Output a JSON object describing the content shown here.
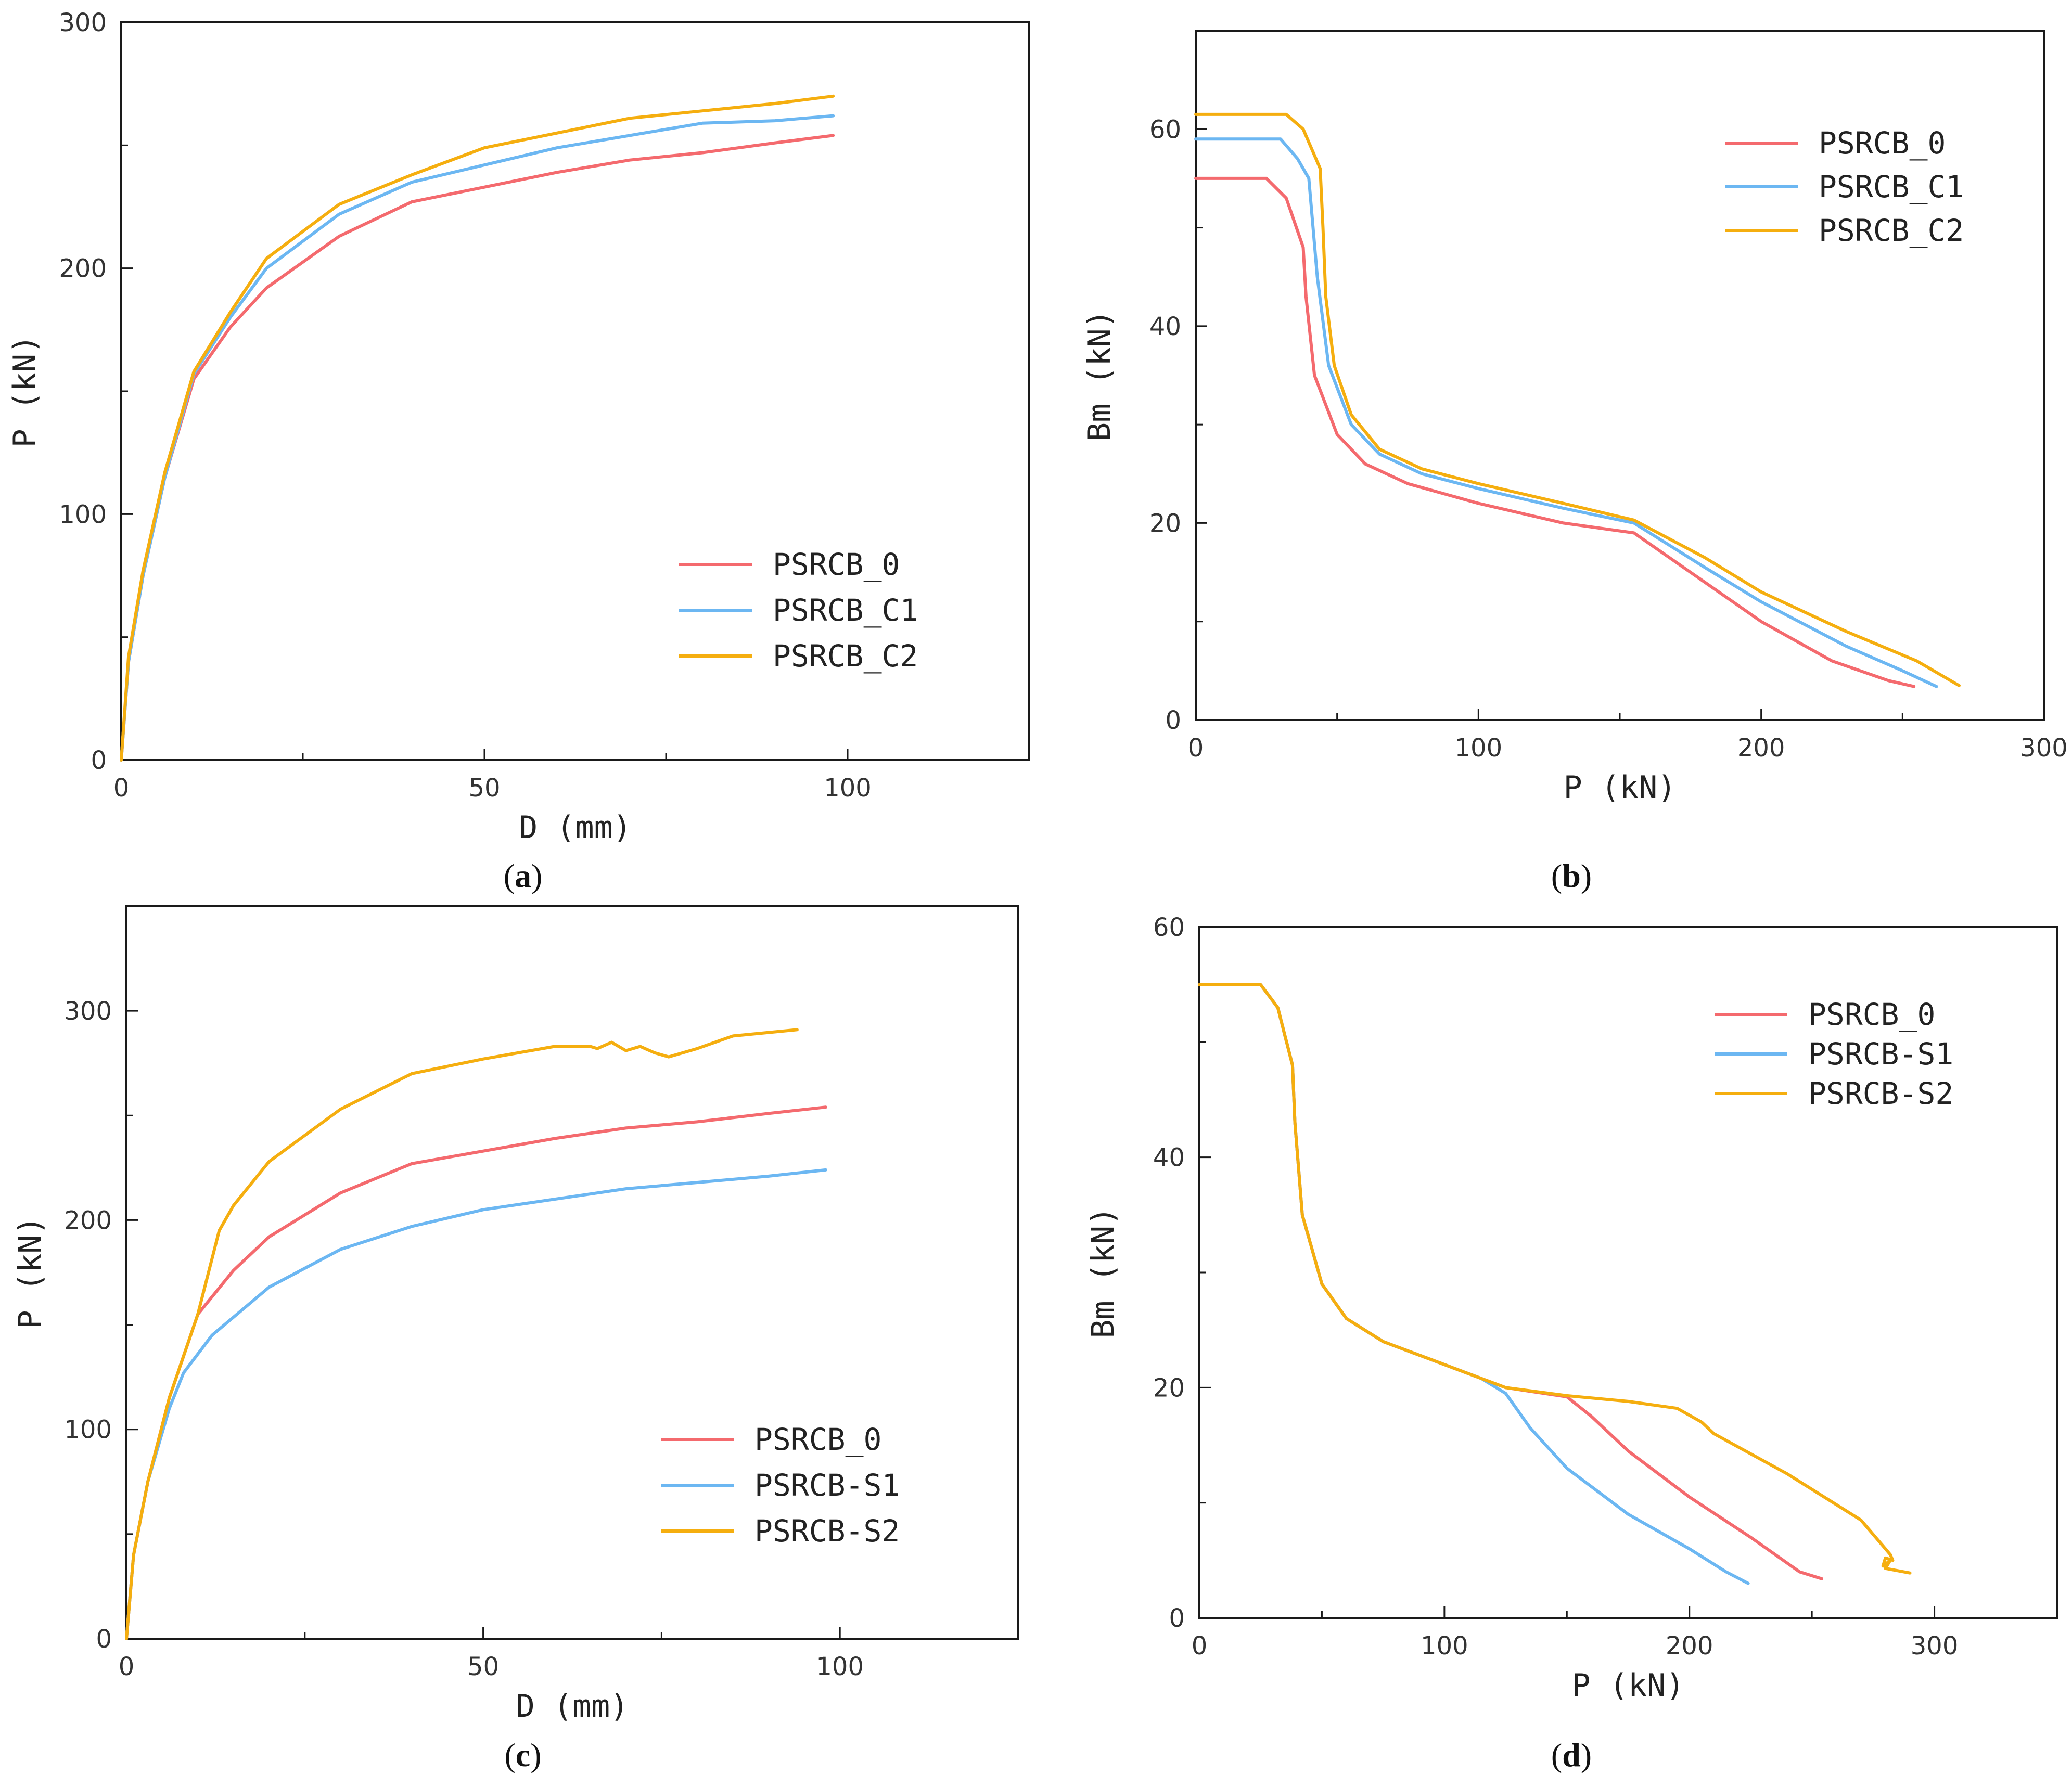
{
  "figure": {
    "background": "#ffffff",
    "series_colors": {
      "PSRCB_0": "#f46a6e",
      "PSRCB_C1": "#6cb7f2",
      "PSRCB_C2": "#f5ae0f",
      "PSRCB-S1": "#6cb7f2",
      "PSRCB-S2": "#f5ae0f"
    }
  },
  "chart_data": [
    {
      "id": "a",
      "caption": {
        "open": "(",
        "letter": "a",
        "close": ")"
      },
      "type": "line",
      "xlabel": "D (mm)",
      "ylabel": "P (kN)",
      "xlim": [
        0,
        125
      ],
      "ylim": [
        0,
        300
      ],
      "xticks": [
        0,
        50,
        100
      ],
      "yticks": [
        0,
        100,
        200,
        300
      ],
      "legend_position": "lower-right",
      "series": [
        {
          "name": "PSRCB_0",
          "color": "#f46a6e",
          "points": [
            [
              0,
              0
            ],
            [
              1,
              40
            ],
            [
              3,
              75
            ],
            [
              6,
              115
            ],
            [
              10,
              155
            ],
            [
              15,
              176
            ],
            [
              20,
              192
            ],
            [
              30,
              213
            ],
            [
              40,
              227
            ],
            [
              50,
              233
            ],
            [
              60,
              239
            ],
            [
              70,
              244
            ],
            [
              80,
              247
            ],
            [
              90,
              251
            ],
            [
              98,
              254
            ]
          ]
        },
        {
          "name": "PSRCB_C1",
          "color": "#6cb7f2",
          "points": [
            [
              0,
              0
            ],
            [
              1,
              40
            ],
            [
              3,
              75
            ],
            [
              6,
              115
            ],
            [
              10,
              157
            ],
            [
              15,
              180
            ],
            [
              20,
              200
            ],
            [
              30,
              222
            ],
            [
              40,
              235
            ],
            [
              50,
              242
            ],
            [
              60,
              249
            ],
            [
              70,
              254
            ],
            [
              80,
              259
            ],
            [
              90,
              260
            ],
            [
              98,
              262
            ]
          ]
        },
        {
          "name": "PSRCB_C2",
          "color": "#f5ae0f",
          "points": [
            [
              0,
              0
            ],
            [
              1,
              42
            ],
            [
              3,
              77
            ],
            [
              6,
              117
            ],
            [
              10,
              158
            ],
            [
              15,
              182
            ],
            [
              20,
              204
            ],
            [
              30,
              226
            ],
            [
              40,
              238
            ],
            [
              50,
              249
            ],
            [
              60,
              255
            ],
            [
              70,
              261
            ],
            [
              80,
              264
            ],
            [
              90,
              267
            ],
            [
              98,
              270
            ]
          ]
        }
      ]
    },
    {
      "id": "b",
      "caption": {
        "open": "(",
        "letter": "b",
        "close": ")"
      },
      "type": "line",
      "xlabel": "P (kN)",
      "ylabel": "Bm (kN)",
      "xlim": [
        0,
        300
      ],
      "ylim": [
        0,
        70
      ],
      "xticks": [
        0,
        100,
        200,
        300
      ],
      "yticks": [
        0,
        20,
        40,
        60
      ],
      "legend_position": "upper-right",
      "series": [
        {
          "name": "PSRCB_0",
          "color": "#f46a6e",
          "points": [
            [
              0,
              55
            ],
            [
              25,
              55
            ],
            [
              32,
              53
            ],
            [
              38,
              48
            ],
            [
              39,
              43
            ],
            [
              42,
              35
            ],
            [
              50,
              29
            ],
            [
              60,
              26
            ],
            [
              75,
              24
            ],
            [
              100,
              22
            ],
            [
              130,
              20
            ],
            [
              155,
              19
            ],
            [
              175,
              15
            ],
            [
              200,
              10
            ],
            [
              225,
              6
            ],
            [
              245,
              4
            ],
            [
              254,
              3.4
            ]
          ]
        },
        {
          "name": "PSRCB_C1",
          "color": "#6cb7f2",
          "points": [
            [
              0,
              59
            ],
            [
              30,
              59
            ],
            [
              36,
              57
            ],
            [
              40,
              55
            ],
            [
              43,
              45
            ],
            [
              47,
              36
            ],
            [
              55,
              30
            ],
            [
              65,
              27
            ],
            [
              80,
              25
            ],
            [
              100,
              23.5
            ],
            [
              130,
              21.5
            ],
            [
              155,
              20
            ],
            [
              180,
              15.5
            ],
            [
              200,
              12
            ],
            [
              230,
              7.5
            ],
            [
              250,
              5
            ],
            [
              262,
              3.4
            ]
          ]
        },
        {
          "name": "PSRCB_C2",
          "color": "#f5ae0f",
          "points": [
            [
              0,
              61.5
            ],
            [
              32,
              61.5
            ],
            [
              38,
              60
            ],
            [
              44,
              56
            ],
            [
              45,
              50
            ],
            [
              46,
              43
            ],
            [
              49,
              36
            ],
            [
              55,
              31
            ],
            [
              65,
              27.5
            ],
            [
              80,
              25.5
            ],
            [
              100,
              24
            ],
            [
              130,
              22
            ],
            [
              155,
              20.3
            ],
            [
              180,
              16.5
            ],
            [
              200,
              13
            ],
            [
              230,
              9
            ],
            [
              255,
              6
            ],
            [
              270,
              3.5
            ]
          ]
        }
      ]
    },
    {
      "id": "c",
      "caption": {
        "open": "(",
        "letter": "c",
        "close": ")"
      },
      "type": "line",
      "xlabel": "D (mm)",
      "ylabel": "P (kN)",
      "xlim": [
        0,
        125
      ],
      "ylim": [
        0,
        350
      ],
      "xticks": [
        0,
        50,
        100
      ],
      "yticks": [
        0,
        100,
        200,
        300
      ],
      "legend_position": "lower-right",
      "series": [
        {
          "name": "PSRCB_0",
          "color": "#f46a6e",
          "points": [
            [
              0,
              0
            ],
            [
              1,
              40
            ],
            [
              3,
              75
            ],
            [
              6,
              115
            ],
            [
              10,
              155
            ],
            [
              15,
              176
            ],
            [
              20,
              192
            ],
            [
              30,
              213
            ],
            [
              40,
              227
            ],
            [
              50,
              233
            ],
            [
              60,
              239
            ],
            [
              70,
              244
            ],
            [
              80,
              247
            ],
            [
              90,
              251
            ],
            [
              98,
              254
            ]
          ]
        },
        {
          "name": "PSRCB-S1",
          "color": "#6cb7f2",
          "points": [
            [
              0,
              0
            ],
            [
              1,
              40
            ],
            [
              3,
              75
            ],
            [
              6,
              110
            ],
            [
              8,
              127
            ],
            [
              12,
              145
            ],
            [
              20,
              168
            ],
            [
              30,
              186
            ],
            [
              40,
              197
            ],
            [
              50,
              205
            ],
            [
              60,
              210
            ],
            [
              70,
              215
            ],
            [
              80,
              218
            ],
            [
              90,
              221
            ],
            [
              98,
              224
            ]
          ]
        },
        {
          "name": "PSRCB-S2",
          "color": "#f5ae0f",
          "points": [
            [
              0,
              0
            ],
            [
              1,
              40
            ],
            [
              3,
              75
            ],
            [
              6,
              115
            ],
            [
              10,
              155
            ],
            [
              13,
              195
            ],
            [
              15,
              207
            ],
            [
              20,
              228
            ],
            [
              30,
              253
            ],
            [
              40,
              270
            ],
            [
              50,
              277
            ],
            [
              60,
              283
            ],
            [
              65,
              283
            ],
            [
              66,
              282
            ],
            [
              68,
              285
            ],
            [
              70,
              281
            ],
            [
              72,
              283
            ],
            [
              74,
              280
            ],
            [
              76,
              278
            ],
            [
              80,
              282
            ],
            [
              85,
              288
            ],
            [
              94,
              291
            ]
          ]
        }
      ]
    },
    {
      "id": "d",
      "caption": {
        "open": "(",
        "letter": "d",
        "close": ")"
      },
      "type": "line",
      "xlabel": "P (kN)",
      "ylabel": "Bm (kN)",
      "xlim": [
        0,
        350
      ],
      "ylim": [
        0,
        60
      ],
      "xticks": [
        0,
        100,
        200,
        300
      ],
      "yticks": [
        0,
        20,
        40,
        60
      ],
      "legend_position": "upper-right",
      "series": [
        {
          "name": "PSRCB_0",
          "color": "#f46a6e",
          "points": [
            [
              0,
              55
            ],
            [
              25,
              55
            ],
            [
              32,
              53
            ],
            [
              38,
              48
            ],
            [
              39,
              43
            ],
            [
              42,
              35
            ],
            [
              50,
              29
            ],
            [
              60,
              26
            ],
            [
              75,
              24
            ],
            [
              100,
              22
            ],
            [
              125,
              20
            ],
            [
              150,
              19.2
            ],
            [
              160,
              17.5
            ],
            [
              175,
              14.5
            ],
            [
              200,
              10.5
            ],
            [
              225,
              7
            ],
            [
              245,
              4
            ],
            [
              254,
              3.4
            ]
          ]
        },
        {
          "name": "PSRCB-S1",
          "color": "#6cb7f2",
          "points": [
            [
              0,
              55
            ],
            [
              25,
              55
            ],
            [
              32,
              53
            ],
            [
              38,
              48
            ],
            [
              39,
              43
            ],
            [
              42,
              35
            ],
            [
              50,
              29
            ],
            [
              60,
              26
            ],
            [
              75,
              24
            ],
            [
              100,
              22
            ],
            [
              115,
              20.8
            ],
            [
              125,
              19.5
            ],
            [
              135,
              16.5
            ],
            [
              150,
              13
            ],
            [
              175,
              9
            ],
            [
              200,
              6
            ],
            [
              215,
              4
            ],
            [
              224,
              3
            ]
          ]
        },
        {
          "name": "PSRCB-S2",
          "color": "#f5ae0f",
          "points": [
            [
              0,
              55
            ],
            [
              25,
              55
            ],
            [
              32,
              53
            ],
            [
              38,
              48
            ],
            [
              39,
              43
            ],
            [
              42,
              35
            ],
            [
              50,
              29
            ],
            [
              60,
              26
            ],
            [
              75,
              24
            ],
            [
              100,
              22
            ],
            [
              125,
              20
            ],
            [
              150,
              19.3
            ],
            [
              175,
              18.8
            ],
            [
              195,
              18.2
            ],
            [
              205,
              17
            ],
            [
              210,
              16
            ],
            [
              240,
              12.5
            ],
            [
              270,
              8.5
            ],
            [
              280,
              6
            ],
            [
              282,
              5.5
            ],
            [
              283,
              5
            ],
            [
              280,
              5.2
            ],
            [
              279,
              4.5
            ],
            [
              282,
              5
            ],
            [
              280,
              4.3
            ],
            [
              290,
              3.9
            ]
          ]
        }
      ]
    }
  ]
}
